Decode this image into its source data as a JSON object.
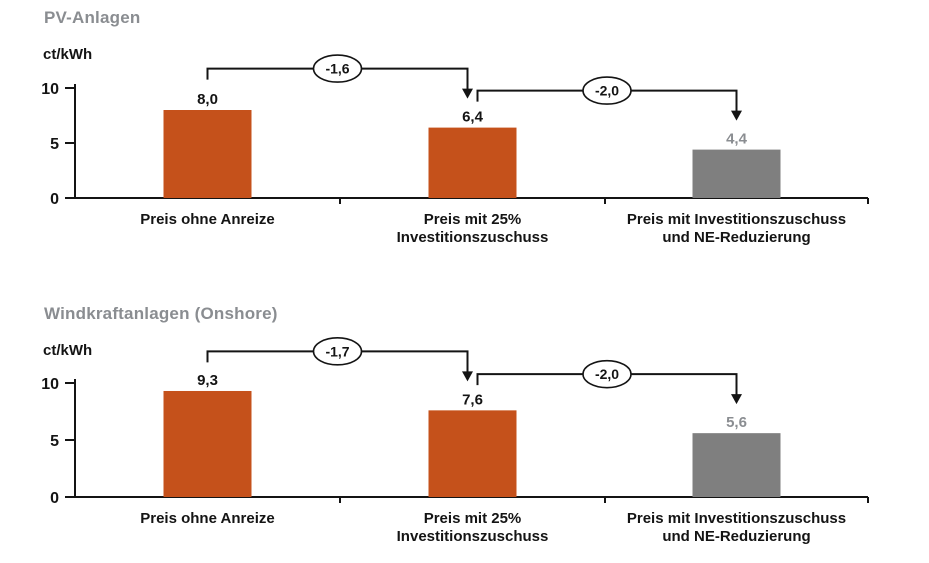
{
  "page": {
    "background": "#FFFFFF"
  },
  "colors": {
    "bar_orange": "#C5511B",
    "bar_gray": "#7F7F7F",
    "muted_text": "#8A8D91",
    "black_text": "#141414",
    "line_black": "#141414",
    "ellipse_fill": "#FFFFFF"
  },
  "chart_data": [
    {
      "type": "bar",
      "title": "PV-Anlagen",
      "ylabel": "ct/kWh",
      "xlabel": "",
      "ylim": [
        0,
        10
      ],
      "yticks": [
        0,
        5,
        10
      ],
      "grid": false,
      "legend": false,
      "categories": [
        "Preis ohne Anreize",
        "Preis mit 25%\nInvestitionszuschuss",
        "Preis mit Investitionszuschuss\nund NE-Reduzierung"
      ],
      "values": [
        8.0,
        6.4,
        4.4
      ],
      "value_labels": [
        "8,0",
        "6,4",
        "4,4"
      ],
      "bar_color_keys": [
        "bar_orange",
        "bar_orange",
        "bar_gray"
      ],
      "value_label_color_keys": [
        "black_text",
        "black_text",
        "muted_text"
      ],
      "deltas": [
        {
          "from": 0,
          "to": 1,
          "label": "-1,6"
        },
        {
          "from": 1,
          "to": 2,
          "label": "-2,0"
        }
      ]
    },
    {
      "type": "bar",
      "title": "Windkraftanlagen (Onshore)",
      "ylabel": "ct/kWh",
      "xlabel": "",
      "ylim": [
        0,
        10
      ],
      "yticks": [
        0,
        5,
        10
      ],
      "grid": false,
      "legend": false,
      "categories": [
        "Preis ohne Anreize",
        "Preis mit 25%\nInvestitionszuschuss",
        "Preis mit Investitionszuschuss\nund NE-Reduzierung"
      ],
      "values": [
        9.3,
        7.6,
        5.6
      ],
      "value_labels": [
        "9,3",
        "7,6",
        "5,6"
      ],
      "bar_color_keys": [
        "bar_orange",
        "bar_orange",
        "bar_gray"
      ],
      "value_label_color_keys": [
        "black_text",
        "black_text",
        "muted_text"
      ],
      "deltas": [
        {
          "from": 0,
          "to": 1,
          "label": "-1,7"
        },
        {
          "from": 1,
          "to": 2,
          "label": "-2,0"
        }
      ]
    }
  ]
}
